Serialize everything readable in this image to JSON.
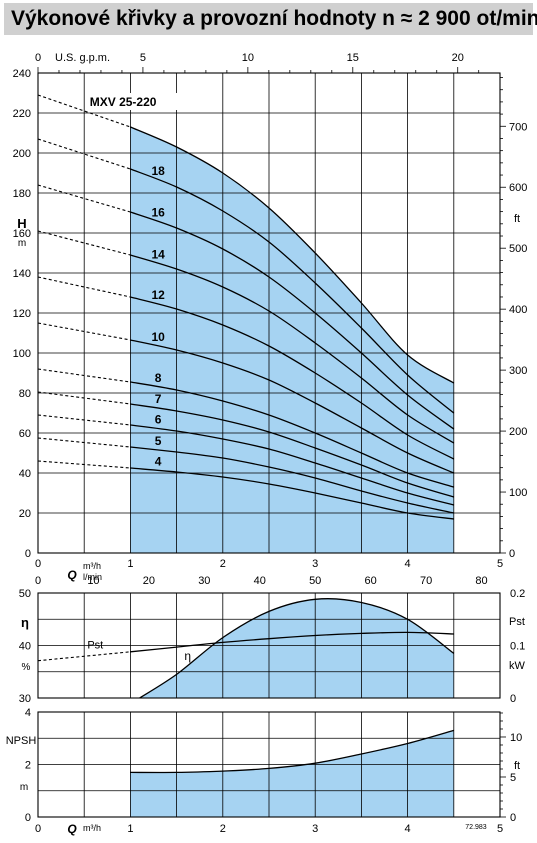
{
  "title": "Výkonové křivky a provozní hodnoty n ≈ 2 900 ot/min",
  "colors": {
    "fill": "#a6d3f2",
    "title_bg": "#d0d0d0",
    "line": "#000000"
  },
  "chart_data": [
    {
      "name": "head-curves",
      "type": "line",
      "model_label": "MXV 25-220",
      "x_top_label": "U.S. g.p.m.",
      "x_top_ticks": [
        "0",
        "5",
        "10",
        "15",
        "20"
      ],
      "x_bottom_ticks": [
        "0",
        "1",
        "2",
        "3",
        "4",
        "5"
      ],
      "ylabel": "H",
      "yunit": "m",
      "yticks": [
        "0",
        "20",
        "40",
        "60",
        "80",
        "100",
        "120",
        "140",
        "160",
        "180",
        "200",
        "220",
        "240"
      ],
      "ylim": [
        0,
        240
      ],
      "y2label": "ft",
      "y2ticks": [
        "0",
        "100",
        "200",
        "300",
        "400",
        "500",
        "600",
        "700"
      ],
      "xlim": [
        0,
        5
      ],
      "operating_range": [
        1,
        4.5
      ],
      "x": [
        0,
        1,
        1.5,
        2,
        2.5,
        3,
        3.5,
        4,
        4.5
      ],
      "series": [
        {
          "name": "4",
          "values": [
            46,
            42.5,
            40.5,
            38,
            34.5,
            30,
            25,
            20,
            17
          ]
        },
        {
          "name": "5",
          "values": [
            57.5,
            53,
            50.5,
            47.5,
            43,
            37.5,
            31,
            25,
            20
          ]
        },
        {
          "name": "6",
          "values": [
            69,
            64,
            61,
            57,
            52,
            45,
            37.5,
            30,
            24
          ]
        },
        {
          "name": "7",
          "values": [
            80.5,
            74.5,
            71,
            66.5,
            60.5,
            52.5,
            44,
            35,
            28
          ]
        },
        {
          "name": "8",
          "values": [
            92,
            85.5,
            81.5,
            76,
            69,
            60,
            50,
            40,
            33
          ]
        },
        {
          "name": "10",
          "values": [
            115,
            106.5,
            101.5,
            95,
            86.5,
            75,
            62.5,
            50,
            40
          ]
        },
        {
          "name": "12",
          "values": [
            138,
            128,
            122,
            114,
            103.5,
            90,
            75,
            59,
            47
          ]
        },
        {
          "name": "14",
          "values": [
            161,
            149,
            142,
            133,
            121,
            105,
            87.5,
            69,
            55
          ]
        },
        {
          "name": "16",
          "values": [
            184,
            170.5,
            162.5,
            152,
            138,
            120,
            100,
            79,
            62
          ]
        },
        {
          "name": "18",
          "values": [
            207,
            192,
            183,
            171,
            155.5,
            135,
            112.5,
            89,
            70
          ]
        },
        {
          "name": "MXV 25-220",
          "values": [
            229,
            213,
            203,
            190,
            172.5,
            150,
            125,
            99,
            85
          ]
        }
      ]
    },
    {
      "name": "efficiency-power",
      "type": "line",
      "q_unit_top": "m³/h",
      "q_unit_bottom": "l/min",
      "q_label": "Q",
      "x_lmin_ticks": [
        "0",
        "10",
        "20",
        "30",
        "40",
        "50",
        "60",
        "70",
        "80"
      ],
      "xlim": [
        0,
        5
      ],
      "yticks": [
        "30",
        "40",
        "50"
      ],
      "ylim": [
        30,
        50
      ],
      "ylabel": "η",
      "yunit": "%",
      "y2ticks": [
        "0",
        "0.1",
        "0.2"
      ],
      "y2lim": [
        0,
        0.2
      ],
      "y2label_top": "Pst",
      "y2unit": "kW",
      "series": [
        {
          "name": "η",
          "x": [
            1.1,
            1.5,
            2,
            2.5,
            3,
            3.5,
            4,
            4.5
          ],
          "values": [
            30,
            34.5,
            41.5,
            46.5,
            48.8,
            48.2,
            45,
            38.5
          ]
        },
        {
          "name": "Pst",
          "x": [
            0,
            1,
            1.5,
            2,
            2.5,
            3,
            3.5,
            4,
            4.5
          ],
          "values": [
            0.071,
            0.088,
            0.097,
            0.106,
            0.113,
            0.119,
            0.123,
            0.125,
            0.122
          ]
        }
      ]
    },
    {
      "name": "npsh",
      "type": "area",
      "ylabel": "NPSH",
      "yunit": "m",
      "yticks": [
        "0",
        "2",
        "4"
      ],
      "ylim": [
        0,
        4
      ],
      "y2label": "ft",
      "y2ticks": [
        "0",
        "5",
        "10"
      ],
      "xlabel": "Q",
      "xunit": "m³/h",
      "x_ticks": [
        "0",
        "1",
        "2",
        "3",
        "4",
        "5"
      ],
      "xlim": [
        0,
        5
      ],
      "x": [
        1,
        1.5,
        2,
        2.5,
        3,
        3.5,
        4,
        4.5
      ],
      "values": [
        1.7,
        1.7,
        1.75,
        1.85,
        2.05,
        2.4,
        2.8,
        3.3
      ]
    }
  ],
  "figure_code": "72.983"
}
